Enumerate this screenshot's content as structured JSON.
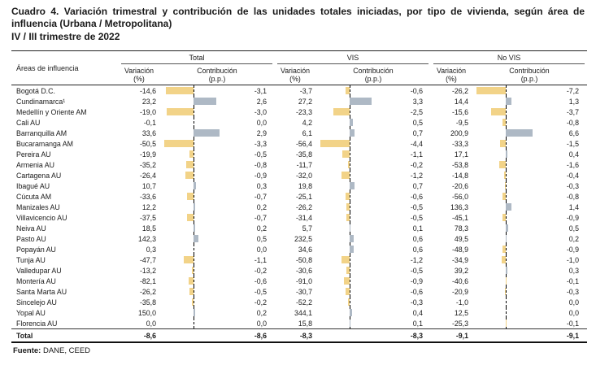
{
  "title": {
    "text": "Cuadro 4. Variación trimestral y contribución de las unidades totales iniciadas, por tipo de vivienda, según área de influencia (Urbana / Metropolitana)",
    "period": "IV / III trimestre de 2022"
  },
  "table": {
    "area_header": "Áreas de influencia",
    "groups": [
      "Total",
      "VIS",
      "No VIS"
    ],
    "sub_variacion": "Variación",
    "sub_variacion_unit": "(%)",
    "sub_contribucion": "Contribución",
    "sub_contribucion_unit": "(p.p.)",
    "rows": [
      {
        "name": "Bogotá D.C.",
        "total": [
          "-14,6",
          "-3,1"
        ],
        "vis": [
          "-3,7",
          "-0,6"
        ],
        "novis": [
          "-26,2",
          "-7,2"
        ]
      },
      {
        "name": "Cundinamarca¹",
        "total": [
          "23,2",
          "2,6"
        ],
        "vis": [
          "27,2",
          "3,3"
        ],
        "novis": [
          "14,4",
          "1,3"
        ]
      },
      {
        "name": "Medellín y Oriente AM",
        "total": [
          "-19,0",
          "-3,0"
        ],
        "vis": [
          "-23,3",
          "-2,5"
        ],
        "novis": [
          "-15,6",
          "-3,7"
        ]
      },
      {
        "name": "Cali AU",
        "total": [
          "-0,1",
          "0,0"
        ],
        "vis": [
          "4,2",
          "0,5"
        ],
        "novis": [
          "-9,5",
          "-0,8"
        ]
      },
      {
        "name": "Barranquilla AM",
        "total": [
          "33,6",
          "2,9"
        ],
        "vis": [
          "6,1",
          "0,7"
        ],
        "novis": [
          "200,9",
          "6,6"
        ]
      },
      {
        "name": "Bucaramanga AM",
        "total": [
          "-50,5",
          "-3,3"
        ],
        "vis": [
          "-56,4",
          "-4,4"
        ],
        "novis": [
          "-33,3",
          "-1,5"
        ]
      },
      {
        "name": "Pereira AU",
        "total": [
          "-19,9",
          "-0,5"
        ],
        "vis": [
          "-35,8",
          "-1,1"
        ],
        "novis": [
          "17,1",
          "0,4"
        ]
      },
      {
        "name": "Armenia AU",
        "total": [
          "-35,2",
          "-0,8"
        ],
        "vis": [
          "-11,7",
          "-0,2"
        ],
        "novis": [
          "-53,8",
          "-1,6"
        ]
      },
      {
        "name": "Cartagena AU",
        "total": [
          "-26,4",
          "-0,9"
        ],
        "vis": [
          "-32,0",
          "-1,2"
        ],
        "novis": [
          "-14,8",
          "-0,4"
        ]
      },
      {
        "name": "Ibagué AU",
        "total": [
          "10,7",
          "0,3"
        ],
        "vis": [
          "19,8",
          "0,7"
        ],
        "novis": [
          "-20,6",
          "-0,3"
        ]
      },
      {
        "name": "Cúcuta AM",
        "total": [
          "-33,6",
          "-0,7"
        ],
        "vis": [
          "-25,1",
          "-0,6"
        ],
        "novis": [
          "-56,0",
          "-0,8"
        ]
      },
      {
        "name": "Manizales AU",
        "total": [
          "12,2",
          "0,2"
        ],
        "vis": [
          "-26,2",
          "-0,5"
        ],
        "novis": [
          "136,3",
          "1,4"
        ]
      },
      {
        "name": "Villavicencio AU",
        "total": [
          "-37,5",
          "-0,7"
        ],
        "vis": [
          "-31,4",
          "-0,5"
        ],
        "novis": [
          "-45,1",
          "-0,9"
        ]
      },
      {
        "name": "Neiva AU",
        "total": [
          "18,5",
          "0,2"
        ],
        "vis": [
          "5,7",
          "0,1"
        ],
        "novis": [
          "78,3",
          "0,5"
        ]
      },
      {
        "name": "Pasto AU",
        "total": [
          "142,3",
          "0,5"
        ],
        "vis": [
          "232,5",
          "0,6"
        ],
        "novis": [
          "49,5",
          "0,2"
        ]
      },
      {
        "name": "Popayán AU",
        "total": [
          "0,3",
          "0,0"
        ],
        "vis": [
          "34,6",
          "0,6"
        ],
        "novis": [
          "-48,9",
          "-0,9"
        ]
      },
      {
        "name": "Tunja AU",
        "total": [
          "-47,7",
          "-1,1"
        ],
        "vis": [
          "-50,8",
          "-1,2"
        ],
        "novis": [
          "-34,9",
          "-1,0"
        ]
      },
      {
        "name": "Valledupar AU",
        "total": [
          "-13,2",
          "-0,2"
        ],
        "vis": [
          "-30,6",
          "-0,5"
        ],
        "novis": [
          "39,2",
          "0,3"
        ]
      },
      {
        "name": "Montería AU",
        "total": [
          "-82,1",
          "-0,6"
        ],
        "vis": [
          "-91,0",
          "-0,9"
        ],
        "novis": [
          "-40,6",
          "-0,1"
        ]
      },
      {
        "name": "Santa Marta AU",
        "total": [
          "-26,2",
          "-0,5"
        ],
        "vis": [
          "-30,7",
          "-0,6"
        ],
        "novis": [
          "-20,9",
          "-0,3"
        ]
      },
      {
        "name": "Sincelejo AU",
        "total": [
          "-35,8",
          "-0,2"
        ],
        "vis": [
          "-52,2",
          "-0,3"
        ],
        "novis": [
          "-1,0",
          "0,0"
        ]
      },
      {
        "name": "Yopal AU",
        "total": [
          "150,0",
          "0,2"
        ],
        "vis": [
          "344,1",
          "0,4"
        ],
        "novis": [
          "12,5",
          "0,0"
        ]
      },
      {
        "name": "Florencia AU",
        "total": [
          "0,0",
          "0,0"
        ],
        "vis": [
          "15,8",
          "0,1"
        ],
        "novis": [
          "-25,3",
          "-0,1"
        ]
      }
    ],
    "total_row": {
      "name": "Total",
      "total": [
        "-8,6",
        "-8,6"
      ],
      "vis": [
        "-8,3",
        "-8,3"
      ],
      "novis": [
        "-9,1",
        "-9,1"
      ]
    }
  },
  "footer": {
    "source_label": "Fuente:",
    "source_value": "DANE, CEED"
  },
  "colors": {
    "negative_bar": "#F2D388",
    "positive_bar": "#AEB9C5"
  }
}
